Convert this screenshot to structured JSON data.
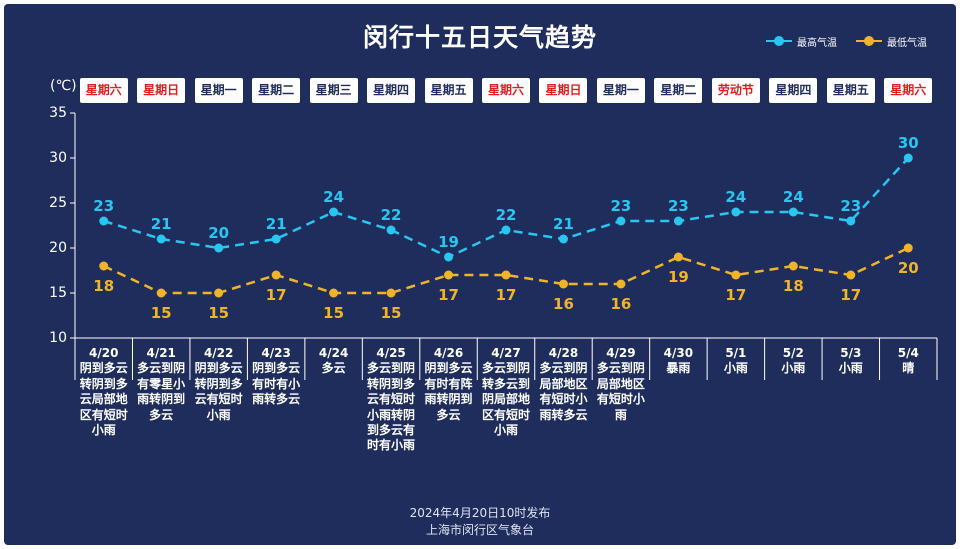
{
  "chart_data": {
    "type": "line",
    "title": "闵行十五日天气趋势",
    "y_unit": "(℃)",
    "ylim": [
      10,
      35
    ],
    "yticks": [
      10,
      15,
      20,
      25,
      30,
      35
    ],
    "categories": [
      "4/20",
      "4/21",
      "4/22",
      "4/23",
      "4/24",
      "4/25",
      "4/26",
      "4/27",
      "4/28",
      "4/29",
      "4/30",
      "5/1",
      "5/2",
      "5/3",
      "5/4"
    ],
    "weekdays": [
      "星期六",
      "星期日",
      "星期一",
      "星期二",
      "星期三",
      "星期四",
      "星期五",
      "星期六",
      "星期日",
      "星期一",
      "星期二",
      "劳动节",
      "星期四",
      "星期五",
      "星期六"
    ],
    "weekday_highlight": [
      true,
      true,
      false,
      false,
      false,
      false,
      false,
      true,
      true,
      false,
      false,
      true,
      false,
      false,
      true
    ],
    "weather": [
      "阴到多云转阴到多云局部地区有短时小雨",
      "多云到阴有零星小雨转阴到多云",
      "阴到多云转阴到多云有短时小雨",
      "阴到多云有时有小雨转多云",
      "多云",
      "多云到阴转阴到多云有短时小雨转阴到多云有时有小雨",
      "阴到多云有时有阵雨转阴到多云",
      "多云到阴转多云到阴局部地区有短时小雨",
      "多云到阴局部地区有短时小雨转多云",
      "多云到阴局部地区有短时小雨",
      "暴雨",
      "小雨",
      "小雨",
      "小雨",
      "晴"
    ],
    "series": [
      {
        "name": "最高气温",
        "color": "#29c6f2",
        "values": [
          23,
          21,
          20,
          21,
          24,
          22,
          19,
          22,
          21,
          23,
          23,
          24,
          24,
          23,
          30
        ]
      },
      {
        "name": "最低气温",
        "color": "#f0b429",
        "values": [
          18,
          15,
          15,
          17,
          15,
          15,
          17,
          17,
          16,
          16,
          19,
          17,
          18,
          17,
          20
        ]
      }
    ],
    "legend_position": "top-right",
    "grid": false
  },
  "colors": {
    "background": "#1f2d5c",
    "axis": "#ffffff",
    "weekday_normal": "#1f2d5c",
    "weekday_highlight": "#e02020"
  },
  "footer": {
    "line1": "2024年4月20日10时发布",
    "line2": "上海市闵行区气象台"
  }
}
